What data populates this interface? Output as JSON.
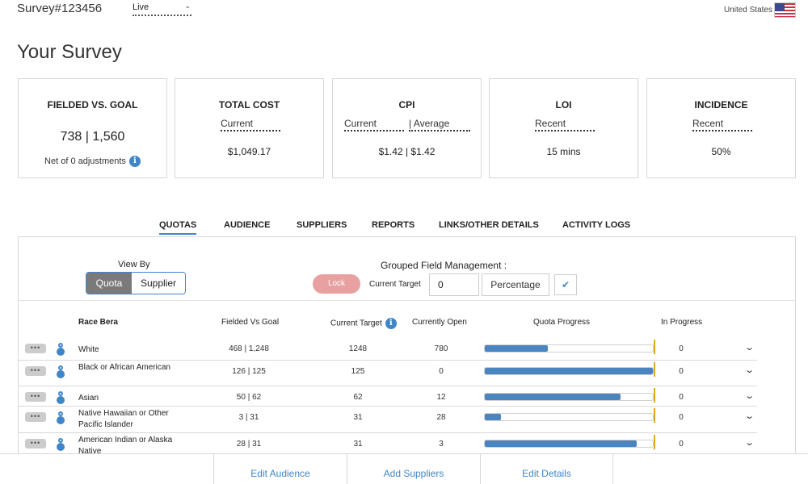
{
  "header": {
    "survey_id": "Survey#123456",
    "status": "Live",
    "country": "United States",
    "country_flag_icon": "us-flag-icon"
  },
  "page_title": "Your Survey",
  "cards": {
    "fielded": {
      "title": "FIELDED VS. GOAL",
      "value": "738 | 1,560",
      "note": "Net of 0 adjustments"
    },
    "total_cost": {
      "title": "TOTAL COST",
      "sub": "Current",
      "value": "$1,049.17"
    },
    "cpi": {
      "title": "CPI",
      "sub_current": "Current",
      "sub_average": "| Average",
      "value": "$1.42 | $1.42"
    },
    "loi": {
      "title": "LOI",
      "sub": "Recent",
      "value": "15 mins"
    },
    "incidence": {
      "title": "INCIDENCE",
      "sub": "Recent",
      "value": "50%"
    }
  },
  "tabs": [
    {
      "label": "QUOTAS",
      "active": true
    },
    {
      "label": "AUDIENCE"
    },
    {
      "label": "SUPPLIERS"
    },
    {
      "label": "REPORTS"
    },
    {
      "label": "LINKS/OTHER DETAILS"
    },
    {
      "label": "ACTIVITY LOGS"
    }
  ],
  "controls": {
    "view_by_label": "View By",
    "view_by_options": [
      "Quota",
      "Supplier"
    ],
    "view_by_selected": "Quota",
    "grouped_label": "Grouped Field Management :",
    "lock_label": "Lock",
    "current_target_label": "Current Target",
    "current_target_value": "0",
    "mode_select": "Percentage",
    "apply_icon": "check-icon"
  },
  "table": {
    "headers": {
      "race": "Race Bera",
      "fielded": "Fielded Vs Goal",
      "target": "Current Target",
      "open": "Currently Open",
      "progress": "Quota Progress",
      "in_progress": "In Progress"
    },
    "rows": [
      {
        "name": "White",
        "fielded": "468 | 1,248",
        "target": "1248",
        "open": "780",
        "progress_fraction": 0.375,
        "in_progress": "0"
      },
      {
        "name": "Black or African American",
        "fielded": "126 | 125",
        "target": "125",
        "open": "0",
        "progress_fraction": 1.0,
        "in_progress": "0"
      },
      {
        "name": "Asian",
        "fielded": "50 | 62",
        "target": "62",
        "open": "12",
        "progress_fraction": 0.806,
        "in_progress": "0"
      },
      {
        "name": "Native Hawaiian or Other Pacific Islander",
        "fielded": "3 | 31",
        "target": "31",
        "open": "28",
        "progress_fraction": 0.097,
        "in_progress": "0"
      },
      {
        "name": "American Indian or Alaska Native",
        "fielded": "28 | 31",
        "target": "31",
        "open": "3",
        "progress_fraction": 0.903,
        "in_progress": "0"
      }
    ]
  },
  "footer": {
    "edit_audience": "Edit Audience",
    "add_suppliers": "Add Suppliers",
    "edit_details": "Edit Details"
  },
  "colors": {
    "accent": "#3f86c9",
    "bar_fill": "#4a85c0",
    "goal_marker": "#d9a924",
    "lock": "#e8a1a0"
  }
}
